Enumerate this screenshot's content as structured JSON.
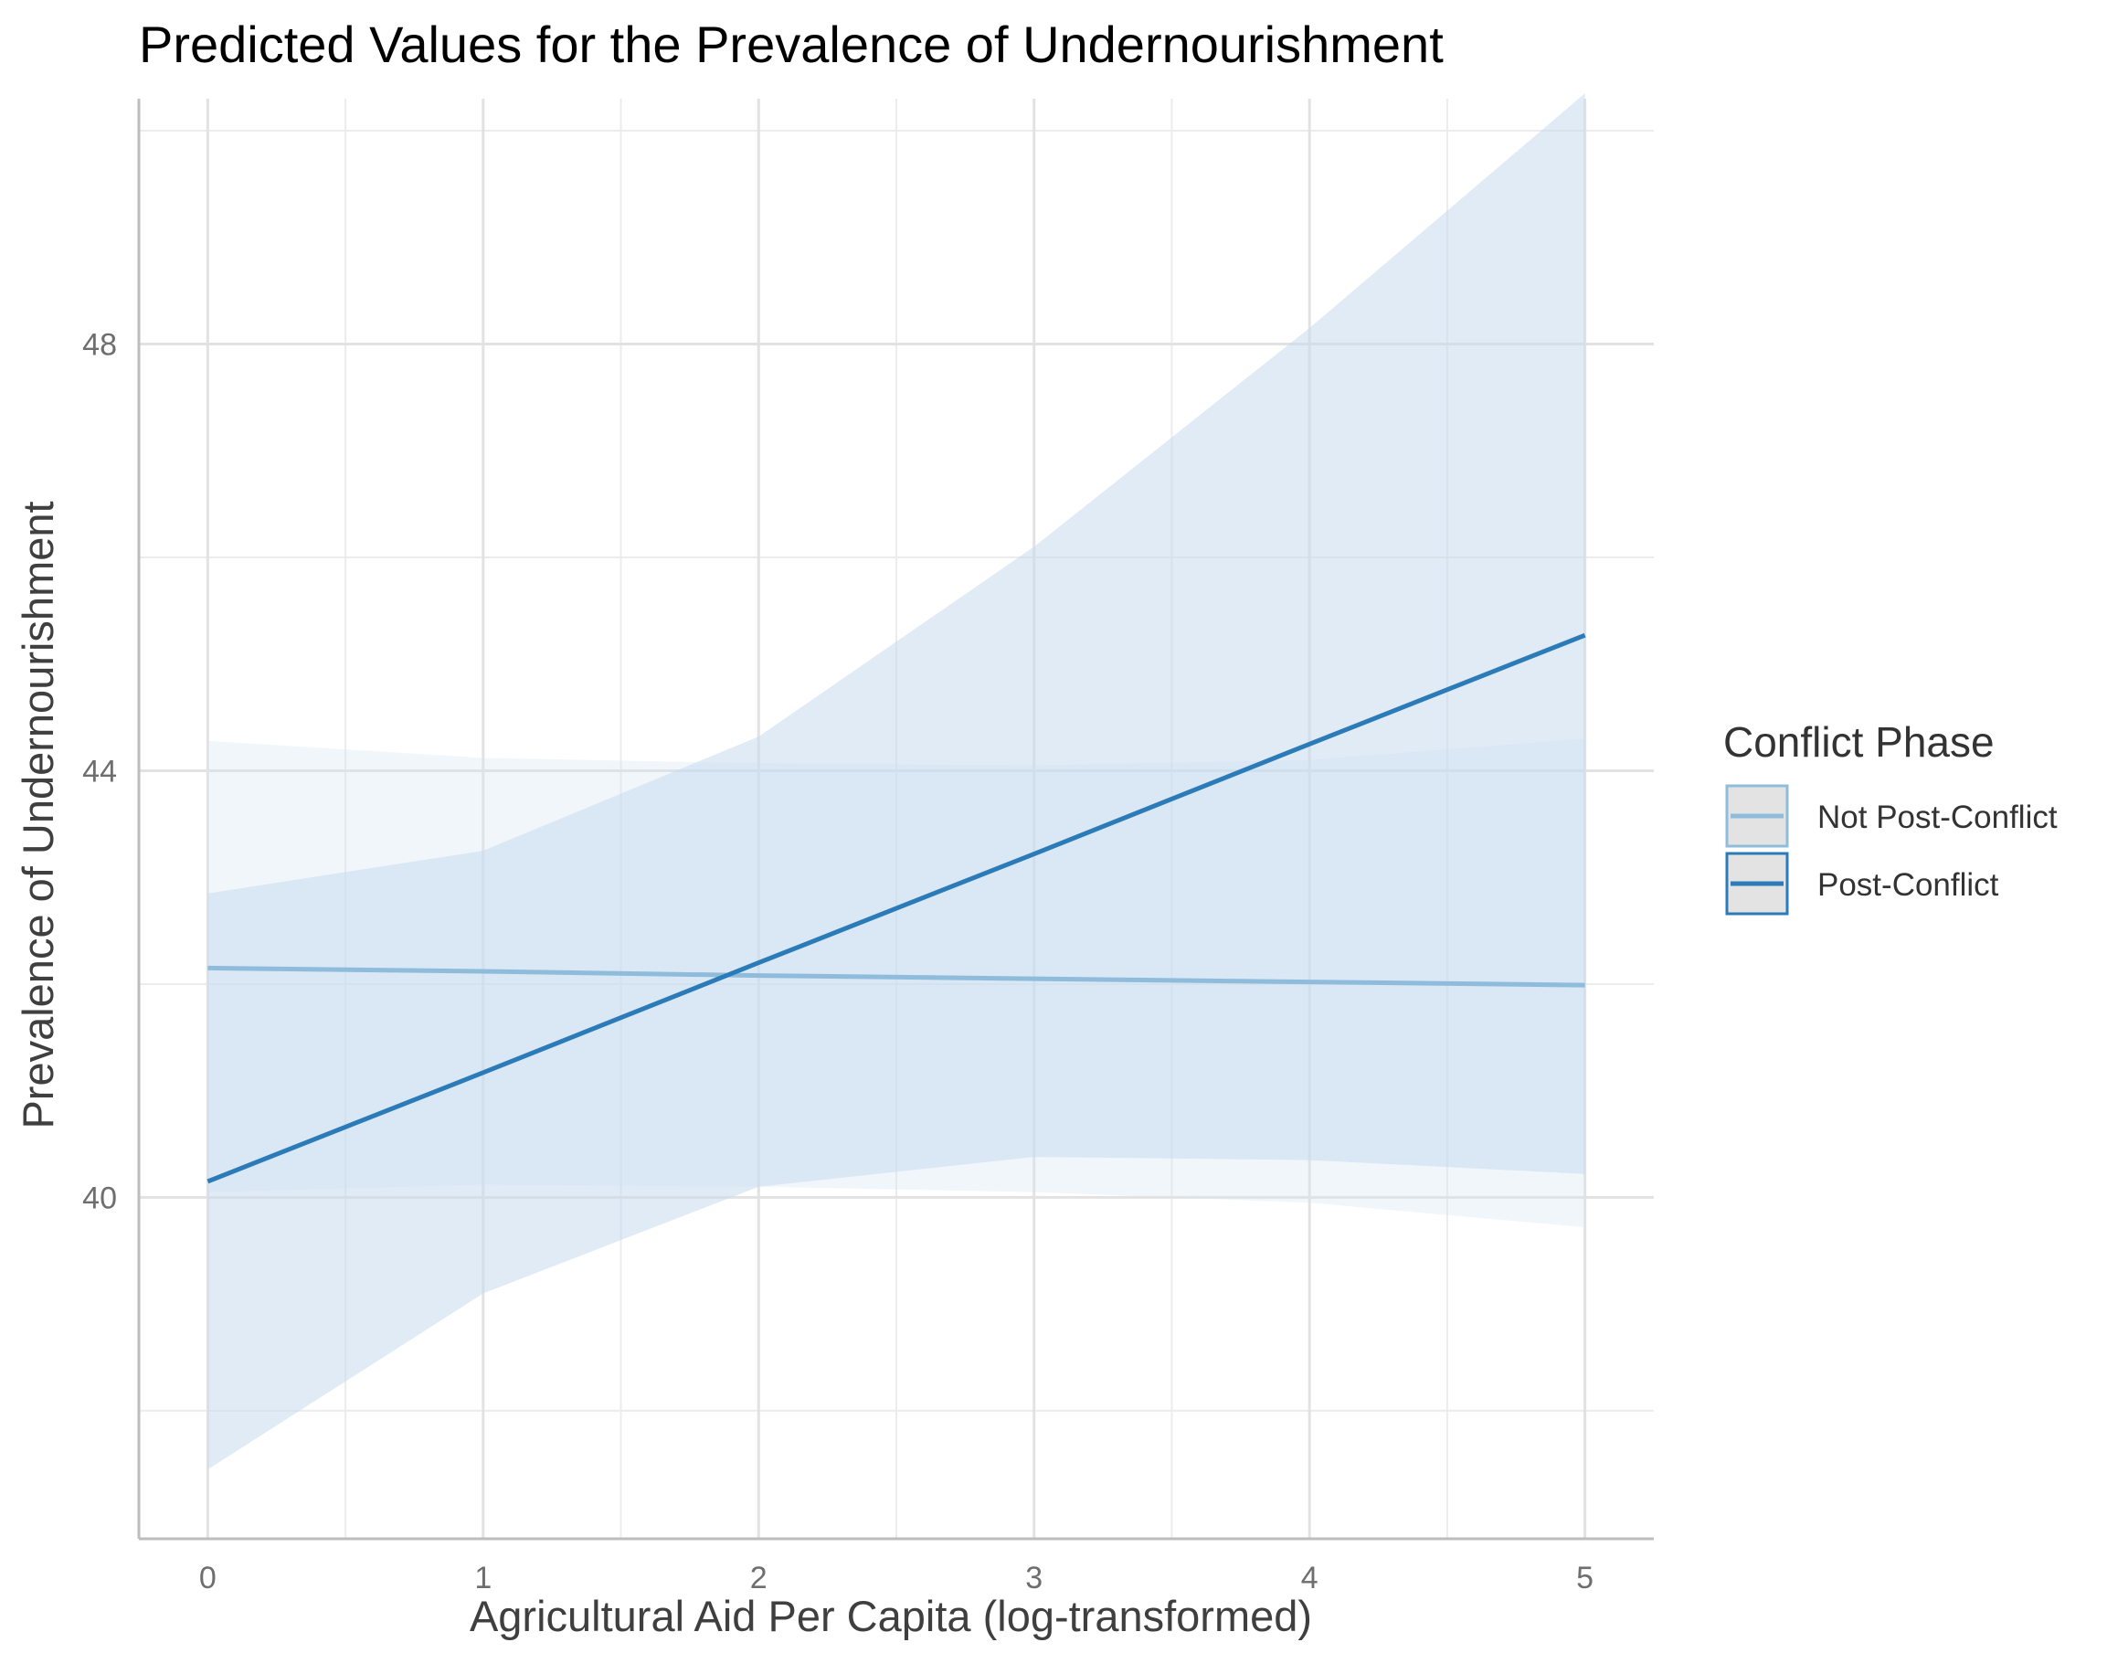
{
  "chart_data": {
    "type": "line",
    "title": "Predicted Values for the Prevalence of Undernourishment",
    "xlabel": "Agricultural Aid Per Capita (log-transformed)",
    "ylabel": "Prevalence of Undernourishment",
    "xlim": [
      -0.25,
      5.25
    ],
    "ylim": [
      36.8,
      50.3
    ],
    "x_ticks": [
      0,
      1,
      2,
      3,
      4,
      5
    ],
    "x_tick_labels": [
      "0",
      "1",
      "2",
      "3",
      "4",
      "5"
    ],
    "y_ticks": [
      40,
      44,
      48
    ],
    "y_tick_labels": [
      "40",
      "44",
      "48"
    ],
    "y_minor_ticks": [
      38,
      42,
      46,
      50
    ],
    "x_minor_ticks": [
      0.5,
      1.5,
      2.5,
      3.5,
      4.5
    ],
    "grid": true,
    "legend": {
      "title": "Conflict Phase",
      "position": "right"
    },
    "series": [
      {
        "name": "Not Post-Conflict",
        "color": "#8fbcdb",
        "ribbon_color": "#d6e6f4",
        "ribbon_opacity": 0.35,
        "x": [
          0,
          1,
          2,
          3,
          4,
          5
        ],
        "values": [
          42.15,
          42.12,
          42.08,
          42.05,
          42.02,
          41.99
        ],
        "lower": [
          40.05,
          40.12,
          40.1,
          40.05,
          39.95,
          39.72
        ],
        "upper": [
          44.28,
          44.12,
          44.07,
          44.05,
          44.1,
          44.3
        ]
      },
      {
        "name": "Post-Conflict",
        "color": "#2b7bb8",
        "ribbon_color": "#c6dbef",
        "ribbon_opacity": 0.55,
        "x": [
          0,
          1,
          2,
          3,
          4,
          5
        ],
        "values": [
          40.15,
          41.17,
          42.2,
          43.22,
          44.25,
          45.27
        ],
        "lower": [
          37.45,
          39.1,
          40.1,
          40.38,
          40.35,
          40.22
        ],
        "upper": [
          42.85,
          43.25,
          44.32,
          46.1,
          48.15,
          50.35
        ]
      }
    ]
  }
}
